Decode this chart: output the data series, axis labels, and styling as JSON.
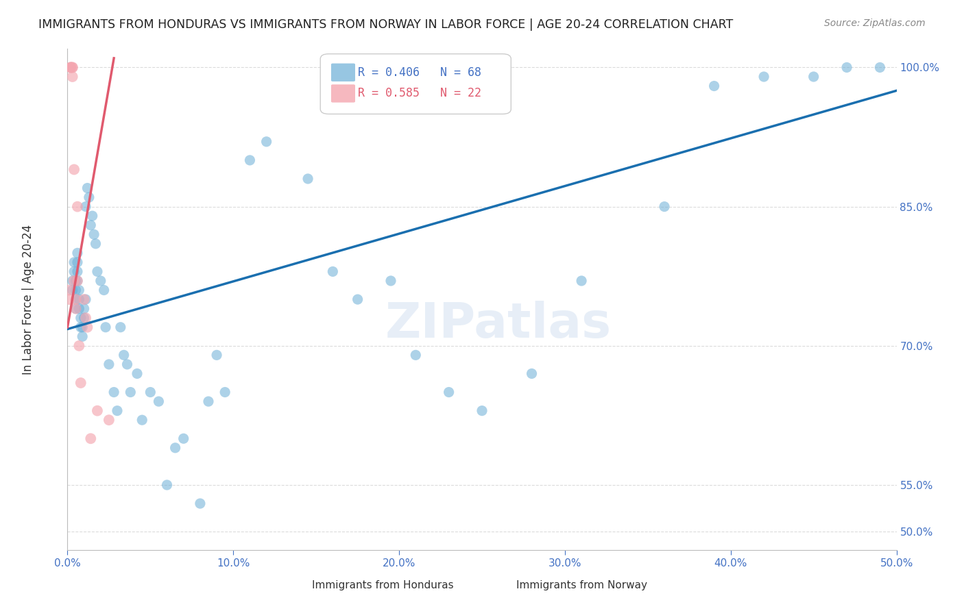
{
  "title": "IMMIGRANTS FROM HONDURAS VS IMMIGRANTS FROM NORWAY IN LABOR FORCE | AGE 20-24 CORRELATION CHART",
  "source": "Source: ZipAtlas.com",
  "xlabel": "",
  "ylabel": "In Labor Force | Age 20-24",
  "watermark": "ZIPatlas",
  "legend_blue_r": "R = 0.406",
  "legend_blue_n": "N = 68",
  "legend_pink_r": "R = 0.585",
  "legend_pink_n": "N = 22",
  "legend_blue_label": "Immigrants from Honduras",
  "legend_pink_label": "Immigrants from Norway",
  "xlim": [
    0.0,
    0.5
  ],
  "ylim": [
    0.48,
    1.02
  ],
  "yticks": [
    0.5,
    0.55,
    0.7,
    0.85,
    1.0
  ],
  "ytick_labels": [
    "50.0%",
    "55.0%",
    "70.0%",
    "85.0%",
    "100.0%"
  ],
  "xticks": [
    0.0,
    0.1,
    0.2,
    0.3,
    0.4,
    0.5
  ],
  "xtick_labels": [
    "0.0%",
    "10.0%",
    "20.0%",
    "30.0%",
    "40.0%",
    "50.0%"
  ],
  "blue_color": "#6baed6",
  "pink_color": "#f4a6b0",
  "blue_line_color": "#1a6faf",
  "pink_line_color": "#e05a6e",
  "title_color": "#222222",
  "axis_color": "#4472c4",
  "grid_color": "#cccccc",
  "blue_x": [
    0.003,
    0.003,
    0.004,
    0.004,
    0.005,
    0.005,
    0.005,
    0.005,
    0.006,
    0.006,
    0.006,
    0.006,
    0.007,
    0.007,
    0.007,
    0.008,
    0.008,
    0.009,
    0.009,
    0.01,
    0.01,
    0.011,
    0.011,
    0.012,
    0.013,
    0.014,
    0.015,
    0.016,
    0.017,
    0.018,
    0.02,
    0.022,
    0.023,
    0.025,
    0.028,
    0.03,
    0.032,
    0.034,
    0.036,
    0.038,
    0.042,
    0.045,
    0.05,
    0.055,
    0.06,
    0.065,
    0.07,
    0.08,
    0.085,
    0.09,
    0.095,
    0.11,
    0.12,
    0.145,
    0.16,
    0.175,
    0.195,
    0.21,
    0.23,
    0.25,
    0.28,
    0.31,
    0.36,
    0.39,
    0.42,
    0.45,
    0.47,
    0.49
  ],
  "blue_y": [
    0.77,
    0.76,
    0.79,
    0.78,
    0.75,
    0.77,
    0.76,
    0.74,
    0.8,
    0.79,
    0.78,
    0.77,
    0.76,
    0.75,
    0.74,
    0.73,
    0.72,
    0.71,
    0.72,
    0.73,
    0.74,
    0.75,
    0.85,
    0.87,
    0.86,
    0.83,
    0.84,
    0.82,
    0.81,
    0.78,
    0.77,
    0.76,
    0.72,
    0.68,
    0.65,
    0.63,
    0.72,
    0.69,
    0.68,
    0.65,
    0.67,
    0.62,
    0.65,
    0.64,
    0.55,
    0.59,
    0.6,
    0.53,
    0.64,
    0.69,
    0.65,
    0.9,
    0.92,
    0.88,
    0.78,
    0.75,
    0.77,
    0.69,
    0.65,
    0.63,
    0.67,
    0.77,
    0.85,
    0.98,
    0.99,
    0.99,
    1.0,
    1.0
  ],
  "pink_x": [
    0.001,
    0.001,
    0.002,
    0.002,
    0.002,
    0.003,
    0.003,
    0.003,
    0.004,
    0.004,
    0.005,
    0.005,
    0.006,
    0.006,
    0.007,
    0.008,
    0.01,
    0.011,
    0.012,
    0.014,
    0.018,
    0.025
  ],
  "pink_y": [
    0.76,
    0.75,
    1.0,
    1.0,
    1.0,
    1.0,
    1.0,
    0.99,
    0.77,
    0.89,
    0.75,
    0.74,
    0.85,
    0.77,
    0.7,
    0.66,
    0.75,
    0.73,
    0.72,
    0.6,
    0.63,
    0.62
  ],
  "blue_trend_x": [
    0.0,
    0.5
  ],
  "blue_trend_y": [
    0.718,
    0.975
  ],
  "pink_trend_x": [
    0.0,
    0.028
  ],
  "pink_trend_y": [
    0.72,
    1.01
  ]
}
